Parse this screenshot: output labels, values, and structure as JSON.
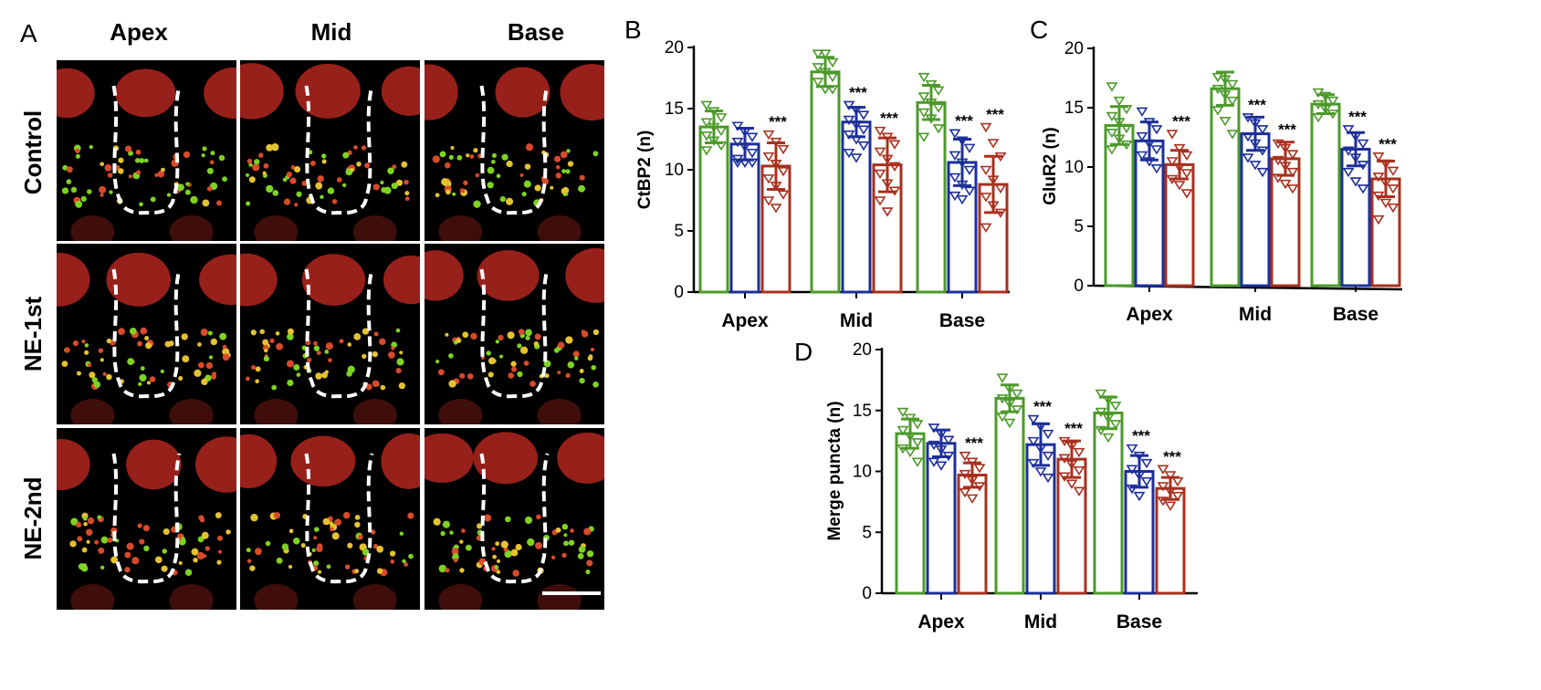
{
  "panels": {
    "A": {
      "letter": "A",
      "columns": [
        "Apex",
        "Mid",
        "Base"
      ],
      "rows": [
        "Control",
        "NE-1st",
        "NE-2nd"
      ],
      "colors": {
        "nuclei": "#b3261e",
        "ctbp2": "#d84a2a",
        "glur2": "#7ed321",
        "outline": "#ffffff",
        "background": "#000000"
      }
    }
  },
  "colors": {
    "control": "#4c9a2a",
    "ne1": "#1d2f9a",
    "ne2": "#a8301e"
  },
  "chart_data": [
    {
      "panel": "B",
      "type": "bar",
      "ylabel": "CtBP2 (n)",
      "ylim": [
        0,
        20
      ],
      "yticks": [
        "0",
        "5",
        "10",
        "15",
        "20"
      ],
      "categories": [
        "Apex",
        "Mid",
        "Base"
      ],
      "series": [
        {
          "values": [
            13.5,
            18.0,
            15.5
          ],
          "errors": [
            1.3,
            1.2,
            1.4
          ],
          "sig": [
            "",
            "",
            ""
          ],
          "points": [
            [
              15.3,
              14.8,
              14.3,
              13.9,
              13.5,
              13.2,
              12.8,
              12.4,
              12.0,
              11.6
            ],
            [
              19.5,
              19.5,
              18.8,
              18.4,
              18.0,
              17.6,
              17.2,
              16.6,
              16.6
            ],
            [
              17.6,
              17.0,
              16.5,
              16.0,
              15.5,
              15.1,
              14.7,
              14.2,
              13.4,
              12.7
            ]
          ]
        },
        {
          "values": [
            12.1,
            13.9,
            10.6
          ],
          "errors": [
            1.3,
            1.2,
            1.9
          ],
          "sig": [
            "",
            "***",
            "***"
          ],
          "points": [
            [
              13.6,
              13.1,
              12.7,
              12.3,
              11.9,
              11.4,
              10.9,
              10.6,
              10.6,
              10.6
            ],
            [
              15.3,
              14.9,
              14.5,
              14.1,
              13.7,
              13.3,
              12.9,
              12.5,
              12.0,
              11.4,
              11.0
            ],
            [
              13.0,
              12.4,
              11.8,
              11.2,
              10.6,
              10.0,
              9.4,
              8.8,
              8.3,
              7.9,
              7.6
            ]
          ]
        },
        {
          "values": [
            10.3,
            10.4,
            8.8
          ],
          "errors": [
            1.9,
            2.2,
            2.3
          ],
          "sig": [
            "***",
            "***",
            "***"
          ],
          "points": [
            [
              12.9,
              12.3,
              11.7,
              11.1,
              10.5,
              9.9,
              9.3,
              8.7,
              8.0,
              7.5,
              6.9
            ],
            [
              13.2,
              12.7,
              12.1,
              11.5,
              10.9,
              10.3,
              9.7,
              8.9,
              8.3,
              7.5,
              6.6
            ],
            [
              13.5,
              12.2,
              11.1,
              10.0,
              9.2,
              8.5,
              7.8,
              7.1,
              6.5,
              5.3
            ]
          ]
        }
      ]
    },
    {
      "panel": "C",
      "type": "bar",
      "ylabel": "GluR2 (n)",
      "ylim": [
        0,
        20
      ],
      "yticks": [
        "0",
        "5",
        "10",
        "15",
        "20"
      ],
      "categories": [
        "Apex",
        "Mid",
        "Base"
      ],
      "series": [
        {
          "values": [
            13.5,
            16.6,
            15.3
          ],
          "errors": [
            1.6,
            1.4,
            0.8
          ],
          "sig": [
            "",
            "",
            ""
          ],
          "points": [
            [
              16.8,
              15.6,
              14.9,
              14.3,
              13.8,
              13.3,
              12.9,
              12.4,
              11.9,
              11.5
            ],
            [
              17.6,
              17.4,
              17.0,
              16.6,
              16.1,
              15.6,
              14.8,
              13.9,
              12.8
            ],
            [
              16.3,
              16.0,
              15.6,
              15.3,
              14.9,
              14.5,
              14.2
            ]
          ]
        },
        {
          "values": [
            12.2,
            12.8,
            11.5
          ],
          "errors": [
            1.6,
            1.4,
            1.4
          ],
          "sig": [
            "",
            "***",
            "***"
          ],
          "points": [
            [
              14.7,
              13.8,
              13.2,
              12.6,
              12.0,
              11.5,
              11.0,
              10.5,
              9.9
            ],
            [
              14.2,
              13.7,
              13.2,
              12.6,
              12.0,
              11.4,
              10.8,
              10.2,
              9.6
            ],
            [
              13.2,
              12.6,
              12.0,
              11.4,
              10.8,
              10.2,
              9.6,
              8.8,
              8.2
            ]
          ]
        },
        {
          "values": [
            10.2,
            10.7,
            9.0
          ],
          "errors": [
            1.2,
            1.4,
            1.5
          ],
          "sig": [
            "***",
            "***",
            "***"
          ],
          "points": [
            [
              12.8,
              11.6,
              11.0,
              10.5,
              10.0,
              9.5,
              9.0,
              8.5,
              7.8
            ],
            [
              12.0,
              11.6,
              11.1,
              10.6,
              10.1,
              9.6,
              9.1,
              8.6,
              8.2
            ],
            [
              10.9,
              10.3,
              9.7,
              9.2,
              8.7,
              8.2,
              7.6,
              7.0,
              6.6,
              5.6
            ]
          ]
        }
      ]
    },
    {
      "panel": "D",
      "type": "bar",
      "ylabel": "Merge puncta (n)",
      "ylim": [
        0,
        20
      ],
      "yticks": [
        "0",
        "5",
        "10",
        "15",
        "20"
      ],
      "categories": [
        "Apex",
        "Mid",
        "Base"
      ],
      "series": [
        {
          "values": [
            13.1,
            16.0,
            14.8
          ],
          "errors": [
            1.2,
            1.1,
            1.3
          ],
          "sig": [
            "",
            "",
            ""
          ],
          "points": [
            [
              14.9,
              14.4,
              13.9,
              13.4,
              12.9,
              12.4,
              11.9,
              11.6,
              10.8
            ],
            [
              17.7,
              16.8,
              16.4,
              16.0,
              15.6,
              15.1,
              14.5,
              14.0
            ],
            [
              16.4,
              15.9,
              15.4,
              14.9,
              14.4,
              13.9,
              13.4,
              12.8
            ]
          ]
        },
        {
          "values": [
            12.3,
            12.2,
            10.0
          ],
          "errors": [
            1.1,
            1.7,
            1.3
          ],
          "sig": [
            "",
            "***",
            "***"
          ],
          "points": [
            [
              13.6,
              13.1,
              12.6,
              12.2,
              11.8,
              11.3,
              10.8,
              10.5
            ],
            [
              14.3,
              13.7,
              13.1,
              12.5,
              11.9,
              11.3,
              10.7,
              10.0,
              9.5
            ],
            [
              11.9,
              11.3,
              10.7,
              10.2,
              9.7,
              9.2,
              8.6,
              8.0
            ]
          ]
        },
        {
          "values": [
            9.7,
            11.0,
            8.6
          ],
          "errors": [
            1.0,
            1.5,
            0.9
          ],
          "sig": [
            "***",
            "***",
            "***"
          ],
          "points": [
            [
              11.3,
              10.8,
              10.3,
              9.8,
              9.3,
              8.8,
              8.3,
              7.8
            ],
            [
              12.5,
              12.1,
              11.6,
              11.1,
              10.6,
              10.1,
              9.6,
              9.0,
              8.4
            ],
            [
              10.2,
              9.7,
              9.2,
              8.8,
              8.4,
              8.0,
              7.6,
              7.2
            ]
          ]
        }
      ]
    }
  ]
}
